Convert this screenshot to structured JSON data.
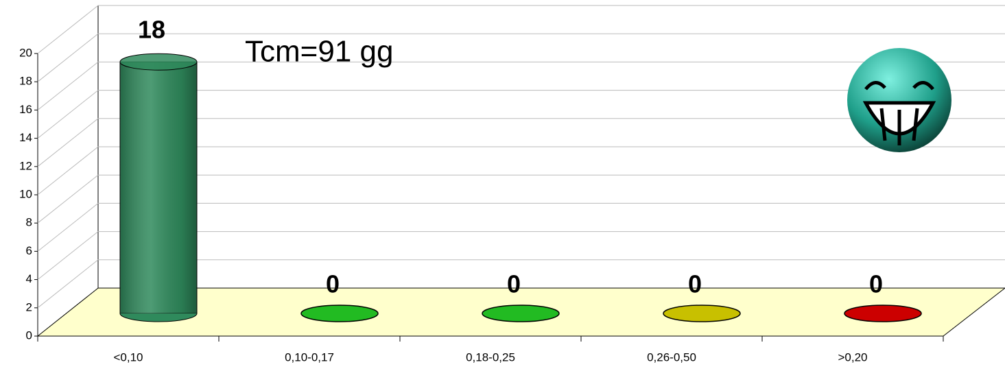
{
  "chart_data": {
    "type": "bar3d",
    "annotation": "Tcm=91 gg",
    "categories": [
      "<0,10",
      "0,10-0,17",
      "0,18-0,25",
      "0,26-0,50",
      ">0,20"
    ],
    "values": [
      18,
      0,
      0,
      0,
      0
    ],
    "colors": [
      "#2f8a5c",
      "#22bb22",
      "#22bb22",
      "#c8c000",
      "#cc0000"
    ],
    "ylim": [
      0,
      20
    ],
    "yticks": [
      0,
      2,
      4,
      6,
      8,
      10,
      12,
      14,
      16,
      18,
      20
    ],
    "grid": true
  }
}
